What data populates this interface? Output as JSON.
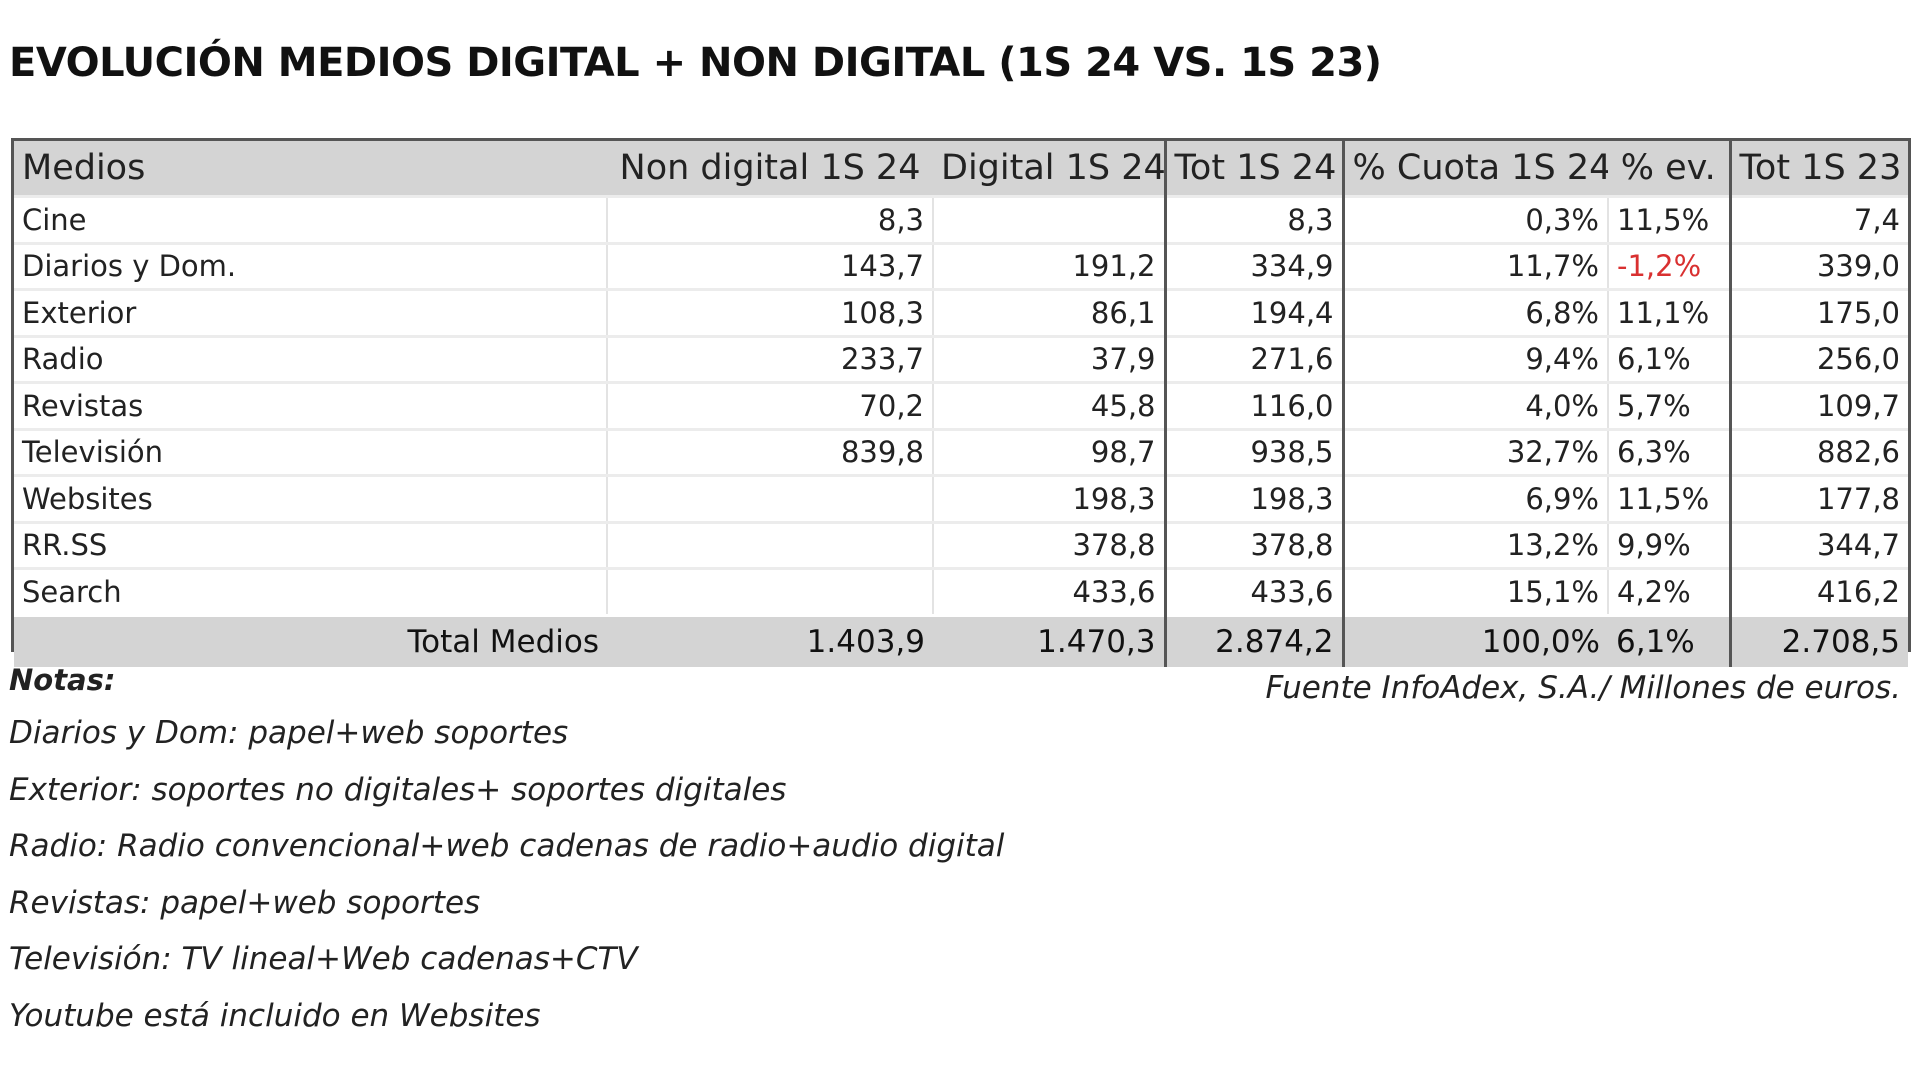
{
  "title": "EVOLUCIÓN MEDIOS DIGITAL + NON DIGITAL (1S 24 VS. 1S 23)",
  "chart_data": {
    "type": "table",
    "title": "EVOLUCIÓN MEDIOS DIGITAL + NON DIGITAL (1S 24 VS. 1S 23)",
    "columns": [
      "Medios",
      "Non  digital 1S 24",
      "Digital 1S 24",
      "Tot 1S 24",
      "% Cuota 1S 24",
      "% ev.",
      "Tot 1S 23"
    ],
    "rows": [
      [
        "Cine",
        "8,3",
        "",
        "8,3",
        "0,3%",
        "11,5%",
        "7,4"
      ],
      [
        "Diarios y Dom.",
        "143,7",
        "191,2",
        "334,9",
        "11,7%",
        "-1,2%",
        "339,0"
      ],
      [
        "Exterior",
        "108,3",
        "86,1",
        "194,4",
        "6,8%",
        "11,1%",
        "175,0"
      ],
      [
        "Radio",
        "233,7",
        "37,9",
        "271,6",
        "9,4%",
        "6,1%",
        "256,0"
      ],
      [
        "Revistas",
        "70,2",
        "45,8",
        "116,0",
        "4,0%",
        "5,7%",
        "109,7"
      ],
      [
        "Televisión",
        "839,8",
        "98,7",
        "938,5",
        "32,7%",
        "6,3%",
        "882,6"
      ],
      [
        "Websites",
        "",
        "198,3",
        "198,3",
        "6,9%",
        "11,5%",
        "177,8"
      ],
      [
        "RR.SS",
        "",
        "378,8",
        "378,8",
        "13,2%",
        "9,9%",
        "344,7"
      ],
      [
        "Search",
        "",
        "433,6",
        "433,6",
        "15,1%",
        "4,2%",
        "416,2"
      ]
    ],
    "total": [
      "Total Medios",
      "1.403,9",
      "1.470,3",
      "2.874,2",
      "100,0%",
      "6,1%",
      "2.708,5"
    ],
    "negative_color": "#d93030"
  },
  "notes": {
    "heading": "Notas:",
    "source": "Fuente InfoAdex, S.A./ Millones de euros.",
    "lines": [
      "Diarios y Dom: papel+web soportes",
      "Exterior: soportes no digitales+ soportes digitales",
      "Radio: Radio convencional+web cadenas de radio+audio digital",
      "Revistas: papel+web soportes",
      "Televisión: TV lineal+Web cadenas+CTV",
      "Youtube está incluido en Websites"
    ]
  }
}
